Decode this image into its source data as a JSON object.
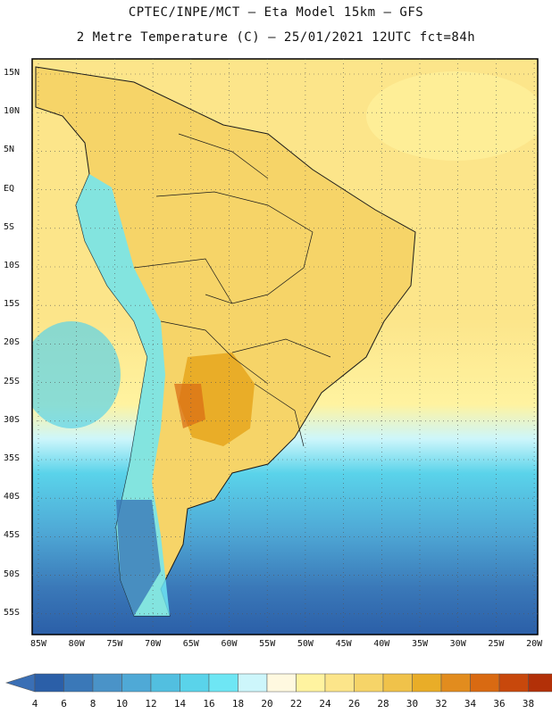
{
  "header": {
    "line1": "CPTEC/INPE/MCT –  Eta Model 15km – GFS",
    "line2": "2 Metre Temperature (C) – 25/01/2021 12UTC fct=84h"
  },
  "axes": {
    "lat_labels": [
      "15N",
      "10N",
      "5N",
      "EQ",
      "5S",
      "10S",
      "15S",
      "20S",
      "25S",
      "30S",
      "35S",
      "40S",
      "45S",
      "50S",
      "55S"
    ],
    "lon_labels": [
      "85W",
      "80W",
      "75W",
      "70W",
      "65W",
      "60W",
      "55W",
      "50W",
      "45W",
      "40W",
      "35W",
      "30W",
      "25W",
      "20W"
    ]
  },
  "colorbar": {
    "labels": [
      "4",
      "6",
      "8",
      "10",
      "12",
      "14",
      "16",
      "18",
      "20",
      "22",
      "24",
      "26",
      "28",
      "30",
      "32",
      "34",
      "36",
      "38"
    ],
    "colors": [
      "#2b5fa8",
      "#3a78b8",
      "#4a93c8",
      "#4fa9d6",
      "#52bfe0",
      "#5ad3ea",
      "#6ee6f4",
      "#cdf6fb",
      "#fff9e0",
      "#fff3a0",
      "#fce58a",
      "#f6d468",
      "#f0c24a",
      "#e9ad28",
      "#e28c1e",
      "#d96a12",
      "#c8480c",
      "#b23008"
    ],
    "low_color": "#3a6fb5",
    "high_color": "#b83a0c"
  }
}
